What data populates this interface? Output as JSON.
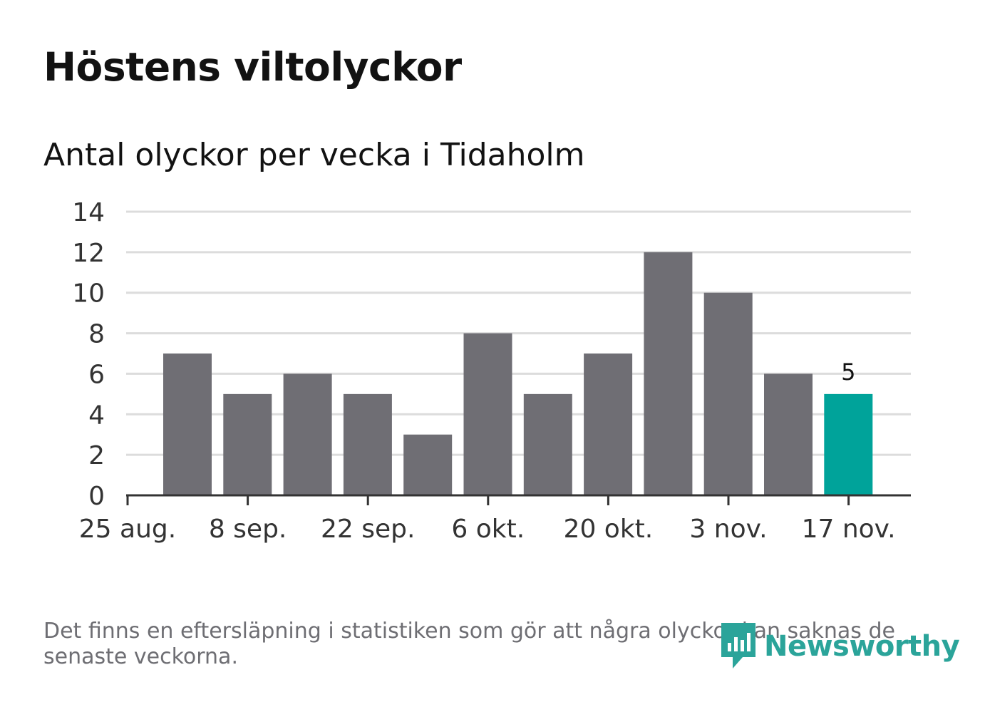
{
  "title": "Höstens viltolyckor",
  "subtitle": "Antal olyckor per vecka i Tidaholm",
  "note": "Det finns en eftersläpning i statistiken som gör att några olyckor kan saknas de senaste veckorna.",
  "brand": "Newsworthy",
  "colors": {
    "bar": "#6f6e74",
    "highlight": "#00a39a",
    "grid": "#dcdcdc",
    "axis": "#333333",
    "text": "#333333",
    "brand": "#2ba49a"
  },
  "chart_data": {
    "type": "bar",
    "x_tick_labels": [
      "25 aug.",
      "8 sep.",
      "22 sep.",
      "6 okt.",
      "20 okt.",
      "3 nov.",
      "17 nov."
    ],
    "values": [
      7,
      5,
      6,
      5,
      3,
      8,
      5,
      7,
      12,
      10,
      6,
      5
    ],
    "highlight_index": 11,
    "data_labels": [
      {
        "index": 11,
        "text": "5"
      }
    ],
    "ylim": [
      0,
      14
    ],
    "yticks": [
      0,
      2,
      4,
      6,
      8,
      10,
      12,
      14
    ],
    "grid": true,
    "legend": "none"
  }
}
